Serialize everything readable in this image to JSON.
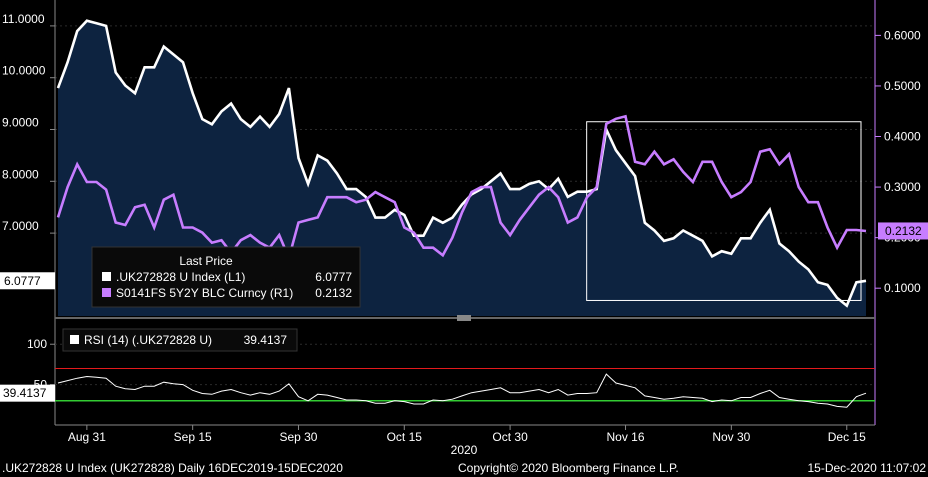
{
  "chart_data": [
    {
      "type": "line",
      "x_ticks": [
        "Aug 31",
        "Sep 15",
        "Sep 30",
        "Oct 15",
        "Oct 30",
        "Nov 16",
        "Nov 30",
        "Dec 15"
      ],
      "year_label": "2020",
      "left_axis": {
        "ticks": [
          "11.0000",
          "10.0000",
          "9.0000",
          "8.0000",
          "7.0000"
        ],
        "ylim": [
          5.4,
          11.5
        ]
      },
      "right_axis": {
        "ticks": [
          "0.6000",
          "0.5000",
          "0.4000",
          "0.3000",
          "0.2000",
          "0.1000"
        ],
        "ylim": [
          0.045,
          0.67
        ]
      },
      "legend": {
        "header": "Last Price",
        "entries": [
          {
            "label": ".UK272828 U Index  (L1)",
            "value": "6.0777",
            "color": "#ffffff"
          },
          {
            "label": "S0141FS 5Y2Y BLC Curncy  (R1)",
            "value": "0.2132",
            "color": "#c77dff"
          }
        ]
      },
      "last_value_tags": {
        "left": "6.0777",
        "right": "0.2132"
      },
      "series": [
        {
          "name": ".UK272828 U Index",
          "axis": "left",
          "color": "#ffffff",
          "area_fill": "#0d2340",
          "values": [
            9.8,
            10.3,
            10.9,
            11.1,
            11.05,
            11.0,
            10.1,
            9.85,
            9.7,
            10.2,
            10.2,
            10.6,
            10.45,
            10.3,
            9.7,
            9.2,
            9.1,
            9.35,
            9.5,
            9.2,
            9.05,
            9.25,
            9.05,
            9.3,
            9.8,
            8.45,
            7.95,
            8.5,
            8.4,
            8.15,
            7.85,
            7.85,
            7.7,
            7.3,
            7.3,
            7.45,
            7.35,
            6.95,
            6.95,
            7.3,
            7.2,
            7.3,
            7.55,
            7.75,
            7.85,
            8.0,
            8.15,
            7.85,
            7.85,
            7.95,
            8.0,
            7.85,
            8.05,
            7.7,
            7.8,
            7.8,
            7.85,
            9.0,
            8.6,
            8.35,
            8.1,
            7.2,
            7.05,
            6.85,
            6.9,
            7.05,
            6.95,
            6.85,
            6.55,
            6.65,
            6.6,
            6.9,
            6.9,
            7.2,
            7.45,
            6.8,
            6.65,
            6.45,
            6.3,
            6.05,
            6.0,
            5.75,
            5.6,
            6.05,
            6.08
          ]
        },
        {
          "name": "S0141FS 5Y2Y BLC Curncy",
          "axis": "right",
          "color": "#c77dff",
          "values": [
            0.24,
            0.3,
            0.345,
            0.31,
            0.31,
            0.295,
            0.23,
            0.225,
            0.26,
            0.265,
            0.22,
            0.275,
            0.285,
            0.22,
            0.22,
            0.21,
            0.19,
            0.195,
            0.17,
            0.195,
            0.205,
            0.19,
            0.18,
            0.205,
            0.16,
            0.23,
            0.235,
            0.24,
            0.28,
            0.28,
            0.28,
            0.27,
            0.275,
            0.29,
            0.28,
            0.27,
            0.22,
            0.21,
            0.18,
            0.18,
            0.165,
            0.2,
            0.25,
            0.29,
            0.3,
            0.3,
            0.23,
            0.205,
            0.235,
            0.26,
            0.285,
            0.3,
            0.28,
            0.23,
            0.24,
            0.28,
            0.3,
            0.425,
            0.435,
            0.44,
            0.35,
            0.345,
            0.37,
            0.345,
            0.355,
            0.33,
            0.31,
            0.35,
            0.35,
            0.31,
            0.28,
            0.29,
            0.31,
            0.37,
            0.375,
            0.345,
            0.365,
            0.3,
            0.27,
            0.27,
            0.22,
            0.18,
            0.215,
            0.215,
            0.2132
          ]
        }
      ],
      "highlight_box": {
        "x_index_range": [
          56,
          84
        ],
        "left_value_range": [
          5.7,
          9.15
        ]
      }
    },
    {
      "type": "line",
      "legend": {
        "label": "RSI (14) (.UK272828 U)",
        "value": "39.4137"
      },
      "last_value_tag": "39.4137",
      "y_ticks": [
        "100",
        "50"
      ],
      "ylim": [
        0,
        130
      ],
      "reference_lines": [
        {
          "value": 70,
          "color": "#e31a1c"
        },
        {
          "value": 30,
          "color": "#33cc33"
        }
      ],
      "series": [
        {
          "name": "RSI (14) (.UK272828 U)",
          "color": "#ffffff",
          "values": [
            52,
            55,
            58,
            60,
            59,
            58,
            48,
            45,
            44,
            48,
            48,
            53,
            51,
            50,
            43,
            39,
            38,
            42,
            44,
            40,
            37,
            40,
            38,
            42,
            51,
            35,
            30,
            38,
            37,
            34,
            31,
            31,
            30,
            27,
            27,
            30,
            29,
            26,
            26,
            31,
            30,
            32,
            36,
            40,
            42,
            44,
            46,
            40,
            40,
            42,
            44,
            40,
            44,
            37,
            39,
            39,
            40,
            63,
            52,
            49,
            46,
            36,
            34,
            32,
            33,
            35,
            34,
            33,
            29,
            31,
            30,
            34,
            34,
            39,
            43,
            34,
            32,
            30,
            29,
            27,
            26,
            23,
            22,
            35,
            39.41
          ]
        }
      ]
    }
  ],
  "footer": {
    "left": ".UK272828 U Index (UK272828)  Daily 16DEC2019-15DEC2020",
    "center": "Copyright© 2020 Bloomberg Finance L.P.",
    "right": "15-Dec-2020 11:07:02"
  }
}
